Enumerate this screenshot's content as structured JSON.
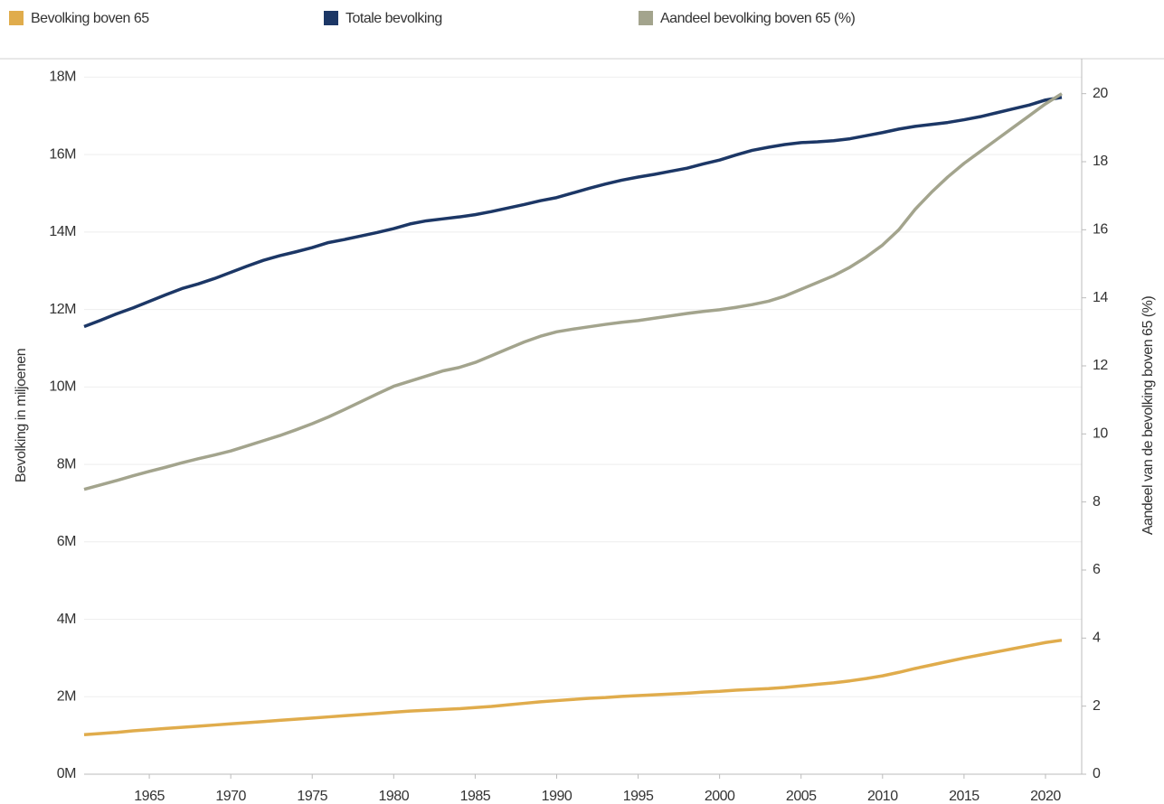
{
  "chart_data": {
    "type": "line",
    "x": [
      1961,
      1962,
      1963,
      1964,
      1965,
      1966,
      1967,
      1968,
      1969,
      1970,
      1971,
      1972,
      1973,
      1974,
      1975,
      1976,
      1977,
      1978,
      1979,
      1980,
      1981,
      1982,
      1983,
      1984,
      1985,
      1986,
      1987,
      1988,
      1989,
      1990,
      1991,
      1992,
      1993,
      1994,
      1995,
      1996,
      1997,
      1998,
      1999,
      2000,
      2001,
      2002,
      2003,
      2004,
      2005,
      2006,
      2007,
      2008,
      2009,
      2010,
      2011,
      2012,
      2013,
      2014,
      2015,
      2016,
      2017,
      2018,
      2019,
      2020,
      2021
    ],
    "series": [
      {
        "name": "Bevolking boven 65",
        "color": "#e0ac4c",
        "values": [
          1.02,
          1.05,
          1.08,
          1.12,
          1.15,
          1.18,
          1.21,
          1.24,
          1.27,
          1.3,
          1.33,
          1.36,
          1.39,
          1.42,
          1.45,
          1.48,
          1.51,
          1.54,
          1.57,
          1.6,
          1.63,
          1.65,
          1.67,
          1.69,
          1.72,
          1.75,
          1.79,
          1.83,
          1.87,
          1.9,
          1.93,
          1.96,
          1.98,
          2.01,
          2.03,
          2.05,
          2.07,
          2.09,
          2.12,
          2.14,
          2.17,
          2.19,
          2.21,
          2.24,
          2.28,
          2.32,
          2.36,
          2.41,
          2.47,
          2.54,
          2.63,
          2.73,
          2.82,
          2.91,
          3.0,
          3.08,
          3.16,
          3.24,
          3.32,
          3.4,
          3.46
        ]
      },
      {
        "name": "Totale bevolking",
        "color": "#1c3766",
        "values": [
          11.56,
          11.72,
          11.89,
          12.04,
          12.21,
          12.38,
          12.54,
          12.66,
          12.8,
          12.96,
          13.12,
          13.27,
          13.39,
          13.49,
          13.6,
          13.73,
          13.81,
          13.9,
          13.99,
          14.09,
          14.21,
          14.29,
          14.34,
          14.39,
          14.45,
          14.53,
          14.62,
          14.71,
          14.81,
          14.89,
          15.01,
          15.13,
          15.24,
          15.34,
          15.42,
          15.49,
          15.57,
          15.65,
          15.76,
          15.86,
          15.99,
          16.11,
          16.19,
          16.26,
          16.31,
          16.33,
          16.36,
          16.41,
          16.49,
          16.57,
          16.66,
          16.73,
          16.78,
          16.83,
          16.9,
          16.98,
          17.08,
          17.18,
          17.28,
          17.41,
          17.48
        ]
      },
      {
        "name": "Aandeel bevolking boven 65 (%)",
        "color": "#a3a48d",
        "axis": "y2",
        "values": [
          8.37,
          8.5,
          8.63,
          8.77,
          8.9,
          9.02,
          9.15,
          9.27,
          9.38,
          9.5,
          9.65,
          9.8,
          9.95,
          10.12,
          10.3,
          10.5,
          10.72,
          10.95,
          11.18,
          11.4,
          11.55,
          11.7,
          11.85,
          11.95,
          12.1,
          12.3,
          12.5,
          12.7,
          12.87,
          13.0,
          13.08,
          13.15,
          13.22,
          13.28,
          13.33,
          13.4,
          13.47,
          13.54,
          13.6,
          13.65,
          13.72,
          13.8,
          13.9,
          14.05,
          14.25,
          14.45,
          14.65,
          14.9,
          15.2,
          15.55,
          16.0,
          16.6,
          17.1,
          17.55,
          17.95,
          18.3,
          18.65,
          19.0,
          19.35,
          19.7,
          20.0
        ]
      }
    ],
    "ylabel": "Bevolking in miljoenen",
    "y2label": "Aandeel van de bevolking boven 65 (%)",
    "xlim": [
      1961,
      2022
    ],
    "xticks": [
      1965,
      1970,
      1975,
      1980,
      1985,
      1990,
      1995,
      2000,
      2005,
      2010,
      2015,
      2020
    ],
    "ylim": [
      0,
      18.5
    ],
    "yticks": [
      {
        "value": 0,
        "label": "0M"
      },
      {
        "value": 2,
        "label": "2M"
      },
      {
        "value": 4,
        "label": "4M"
      },
      {
        "value": 6,
        "label": "6M"
      },
      {
        "value": 8,
        "label": "8M"
      },
      {
        "value": 10,
        "label": "10M"
      },
      {
        "value": 12,
        "label": "12M"
      },
      {
        "value": 14,
        "label": "14M"
      },
      {
        "value": 16,
        "label": "16M"
      },
      {
        "value": 18,
        "label": "18M"
      }
    ],
    "y2lim": [
      0,
      21
    ],
    "y2ticks": [
      0,
      2,
      4,
      6,
      8,
      10,
      12,
      14,
      16,
      18,
      20
    ],
    "grid": true,
    "legend": "top"
  }
}
